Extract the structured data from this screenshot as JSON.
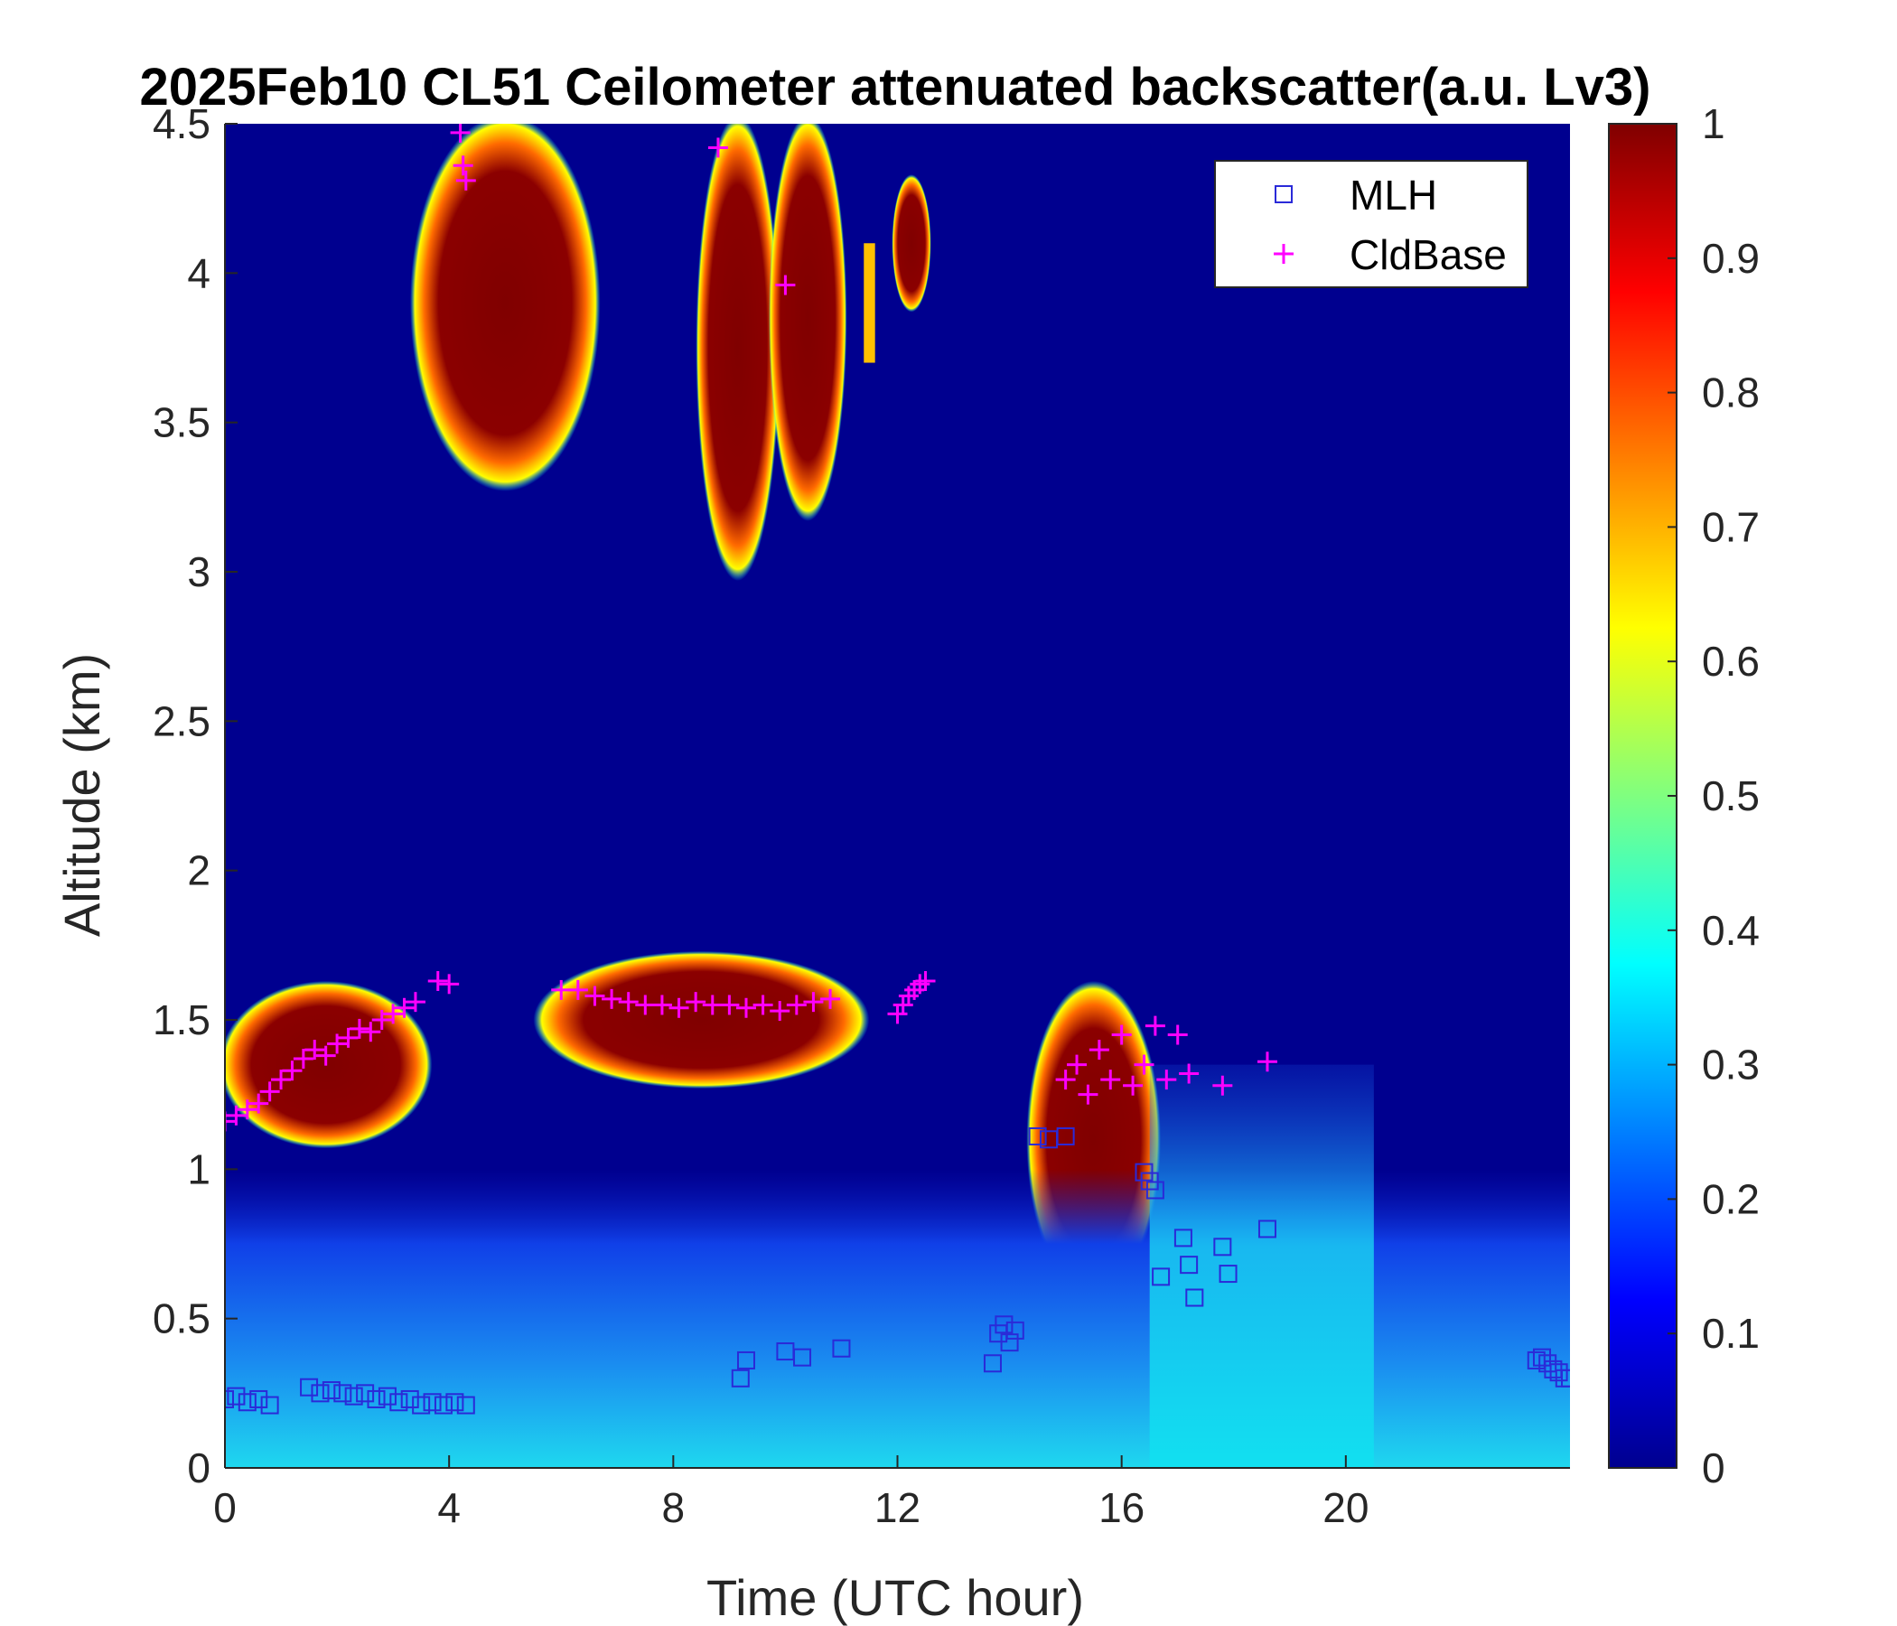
{
  "chart_data": {
    "type": "heatmap",
    "title": "2025Feb10 CL51 Ceilometer attenuated backscatter(a.u. Lv3)",
    "xlabel": "Time (UTC hour)",
    "ylabel": "Altitude (km)",
    "xlim": [
      0,
      24
    ],
    "ylim": [
      0,
      4.5
    ],
    "x_ticks": [
      0,
      4,
      8,
      12,
      16,
      20
    ],
    "y_ticks": [
      0,
      0.5,
      1,
      1.5,
      2,
      2.5,
      3,
      3.5,
      4,
      4.5
    ],
    "colorbar": {
      "colormap": "jet",
      "range": [
        0,
        1
      ],
      "ticks": [
        0,
        0.1,
        0.2,
        0.3,
        0.4,
        0.5,
        0.6,
        0.7,
        0.8,
        0.9,
        1
      ]
    },
    "legend": {
      "placement": "top-right",
      "entries": [
        {
          "name": "MLH",
          "marker": "square",
          "color": "#2a2ad8"
        },
        {
          "name": "CldBase",
          "marker": "plus",
          "color": "#ff00ff"
        }
      ]
    },
    "heat_regions": [
      {
        "label": "upper cloud A",
        "x": [
          3.4,
          6.6
        ],
        "y": [
          3.3,
          4.5
        ],
        "level": 1.0
      },
      {
        "label": "upper cloud B",
        "x": [
          8.5,
          9.8
        ],
        "y": [
          3.0,
          4.5
        ],
        "level": 1.0
      },
      {
        "label": "upper cloud C",
        "x": [
          9.8,
          11.0
        ],
        "y": [
          3.2,
          4.5
        ],
        "level": 1.0
      },
      {
        "label": "upper cloud D",
        "x": [
          11.4,
          11.6
        ],
        "y": [
          3.7,
          4.1
        ],
        "level": 0.7
      },
      {
        "label": "upper cloud E",
        "x": [
          12.0,
          12.5
        ],
        "y": [
          3.9,
          4.3
        ],
        "level": 1.0
      },
      {
        "label": "low cloud layer 1",
        "x": [
          0.0,
          3.6
        ],
        "y": [
          1.1,
          1.6
        ],
        "level": 1.0
      },
      {
        "label": "low cloud layer 2",
        "x": [
          5.6,
          11.4
        ],
        "y": [
          1.3,
          1.7
        ],
        "level": 1.0
      },
      {
        "label": "low cloud layer 3",
        "x": [
          14.4,
          16.6
        ],
        "y": [
          0.6,
          1.6
        ],
        "level": 1.0
      },
      {
        "label": "boundary layer aerosol",
        "x": [
          0,
          24
        ],
        "y": [
          0,
          1.0
        ],
        "level": 0.25
      },
      {
        "label": "afternoon aerosol",
        "x": [
          16.5,
          20.5
        ],
        "y": [
          0,
          1.35
        ],
        "level": 0.3
      }
    ],
    "series": [
      {
        "name": "MLH",
        "x": [
          0.0,
          0.2,
          0.4,
          0.6,
          0.8,
          1.5,
          1.7,
          1.9,
          2.1,
          2.3,
          2.5,
          2.7,
          2.9,
          3.1,
          3.3,
          3.5,
          3.7,
          3.9,
          4.1,
          4.3,
          9.2,
          9.3,
          10.0,
          10.3,
          11.0,
          13.7,
          13.8,
          13.9,
          14.0,
          14.1,
          14.5,
          14.7,
          15.0,
          16.4,
          16.5,
          16.6,
          16.7,
          17.1,
          17.2,
          17.3,
          17.8,
          17.9,
          18.6,
          23.4,
          23.5,
          23.6,
          23.7,
          23.8,
          23.9,
          24.0
        ],
        "y": [
          0.23,
          0.24,
          0.22,
          0.23,
          0.21,
          0.27,
          0.25,
          0.26,
          0.25,
          0.24,
          0.25,
          0.23,
          0.24,
          0.22,
          0.23,
          0.21,
          0.22,
          0.21,
          0.22,
          0.21,
          0.3,
          0.36,
          0.39,
          0.37,
          0.4,
          0.35,
          0.45,
          0.48,
          0.42,
          0.46,
          1.11,
          1.1,
          1.11,
          0.99,
          0.96,
          0.93,
          0.64,
          0.77,
          0.68,
          0.57,
          0.74,
          0.65,
          0.8,
          0.36,
          0.37,
          0.35,
          0.33,
          0.32,
          0.3,
          0.3
        ]
      },
      {
        "name": "CldBase",
        "x": [
          0.0,
          0.2,
          0.4,
          0.6,
          0.8,
          1.0,
          1.2,
          1.4,
          1.6,
          1.8,
          2.0,
          2.2,
          2.4,
          2.6,
          2.8,
          3.0,
          3.2,
          3.4,
          3.8,
          4.0,
          4.2,
          4.25,
          4.3,
          6.0,
          6.3,
          6.6,
          6.9,
          7.2,
          7.5,
          7.8,
          8.1,
          8.4,
          8.7,
          8.8,
          9.0,
          9.3,
          9.6,
          9.9,
          10.0,
          10.2,
          10.5,
          10.8,
          12.0,
          12.1,
          12.2,
          12.3,
          12.4,
          12.5,
          15.0,
          15.2,
          15.4,
          15.6,
          15.8,
          16.0,
          16.2,
          16.4,
          16.6,
          16.8,
          17.0,
          17.2,
          17.8,
          18.6
        ],
        "y": [
          1.16,
          1.18,
          1.2,
          1.22,
          1.26,
          1.3,
          1.33,
          1.37,
          1.4,
          1.38,
          1.42,
          1.44,
          1.47,
          1.46,
          1.5,
          1.52,
          1.54,
          1.56,
          1.63,
          1.62,
          4.47,
          4.36,
          4.31,
          1.6,
          1.6,
          1.58,
          1.57,
          1.56,
          1.55,
          1.55,
          1.54,
          1.56,
          1.55,
          4.42,
          1.55,
          1.54,
          1.55,
          1.53,
          3.96,
          1.55,
          1.56,
          1.57,
          1.52,
          1.55,
          1.58,
          1.6,
          1.62,
          1.63,
          1.3,
          1.35,
          1.25,
          1.4,
          1.3,
          1.45,
          1.28,
          1.35,
          1.48,
          1.3,
          1.45,
          1.32,
          1.28,
          1.36
        ]
      }
    ]
  }
}
